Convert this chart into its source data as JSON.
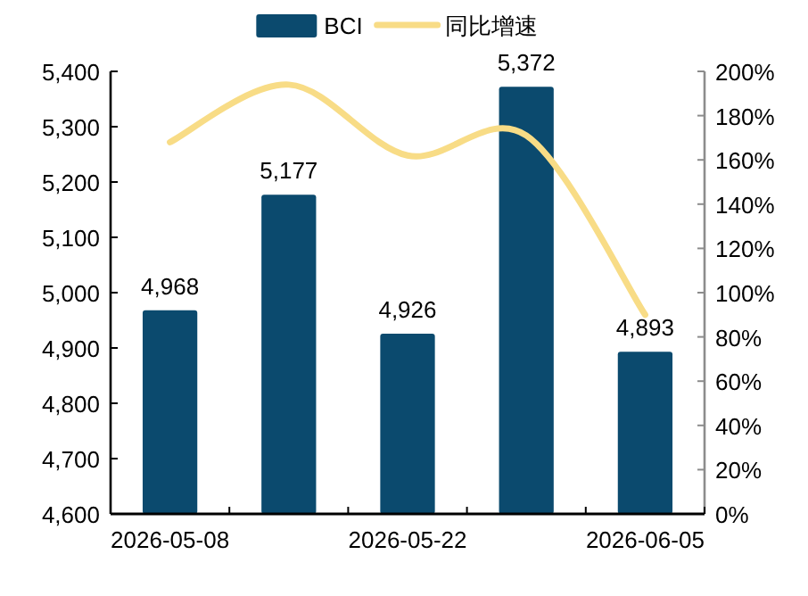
{
  "chart_data": {
    "type": "bar",
    "categories": [
      "2026-05-08",
      null,
      "2026-05-22",
      null,
      "2026-06-05"
    ],
    "series": [
      {
        "name": "BCI",
        "color": "#0b4a6e",
        "values": [
          4968,
          5177,
          4926,
          5372,
          4893
        ],
        "value_labels": [
          "4,968",
          "5,177",
          "4,926",
          "5,372",
          "4,893"
        ]
      },
      {
        "name": "同比增速",
        "type": "line",
        "axis": "y2",
        "color": "#f8dc86",
        "values": [
          168,
          194,
          162,
          171,
          90
        ]
      }
    ],
    "ylim": [
      4600,
      5400
    ],
    "yticks": [
      {
        "value": 4600,
        "label": "4,600"
      },
      {
        "value": 4700,
        "label": "4,700"
      },
      {
        "value": 4800,
        "label": "4,800"
      },
      {
        "value": 4900,
        "label": "4,900"
      },
      {
        "value": 5000,
        "label": "5,000"
      },
      {
        "value": 5100,
        "label": "5,100"
      },
      {
        "value": 5200,
        "label": "5,200"
      },
      {
        "value": 5300,
        "label": "5,300"
      },
      {
        "value": 5400,
        "label": "5,400"
      }
    ],
    "y2lim": [
      0,
      200
    ],
    "y2ticks": [
      {
        "value": 0,
        "label": "0%"
      },
      {
        "value": 20,
        "label": "20%"
      },
      {
        "value": 40,
        "label": "40%"
      },
      {
        "value": 60,
        "label": "60%"
      },
      {
        "value": 80,
        "label": "80%"
      },
      {
        "value": 100,
        "label": "100%"
      },
      {
        "value": 120,
        "label": "120%"
      },
      {
        "value": 140,
        "label": "140%"
      },
      {
        "value": 160,
        "label": "160%"
      },
      {
        "value": 180,
        "label": "180%"
      },
      {
        "value": 200,
        "label": "200%"
      }
    ],
    "legend": "top",
    "grid": false
  }
}
